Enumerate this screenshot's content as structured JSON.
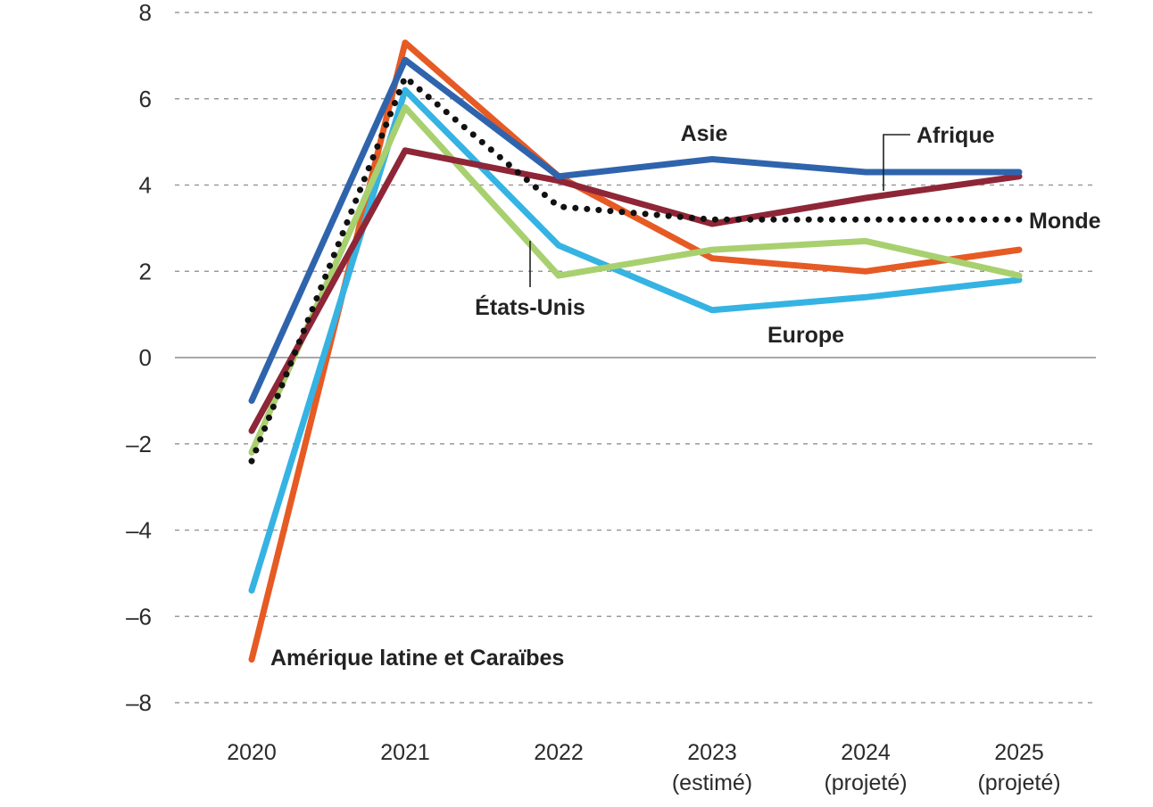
{
  "chart_data": {
    "type": "line",
    "title": "",
    "xlabel": "",
    "ylabel": "",
    "ylim": [
      -8,
      8
    ],
    "yticks": [
      8,
      6,
      4,
      2,
      0,
      -2,
      -4,
      -6,
      -8
    ],
    "ytick_labels": [
      "8",
      "6",
      "4",
      "2",
      "0",
      "–2",
      "–4",
      "–6",
      "–8"
    ],
    "grid": true,
    "categories": [
      {
        "year": "2020",
        "note": ""
      },
      {
        "year": "2021",
        "note": ""
      },
      {
        "year": "2022",
        "note": ""
      },
      {
        "year": "2023",
        "note": "(estimé)"
      },
      {
        "year": "2024",
        "note": "(projeté)"
      },
      {
        "year": "2025",
        "note": "(projeté)"
      }
    ],
    "series": [
      {
        "name": "Amérique latine et Caraïbes",
        "color": "#e65a24",
        "style": "solid",
        "values": [
          -7.0,
          7.3,
          4.2,
          2.3,
          2.0,
          2.5
        ]
      },
      {
        "name": "Europe",
        "color": "#35b3e3",
        "style": "solid",
        "values": [
          -5.4,
          6.2,
          2.6,
          1.1,
          1.4,
          1.8
        ]
      },
      {
        "name": "États-Unis",
        "color": "#a8d06f",
        "style": "solid",
        "values": [
          -2.2,
          5.8,
          1.9,
          2.5,
          2.7,
          1.9
        ]
      },
      {
        "name": "Afrique",
        "color": "#8e2637",
        "style": "solid",
        "values": [
          -1.7,
          4.8,
          4.1,
          3.1,
          3.7,
          4.2
        ]
      },
      {
        "name": "Asie",
        "color": "#2f64ad",
        "style": "solid",
        "values": [
          -1.0,
          6.9,
          4.2,
          4.6,
          4.3,
          4.3
        ]
      },
      {
        "name": "Monde",
        "color": "#111111",
        "style": "dotted",
        "values": [
          -2.4,
          6.5,
          3.5,
          3.2,
          3.2,
          3.2
        ]
      }
    ]
  }
}
